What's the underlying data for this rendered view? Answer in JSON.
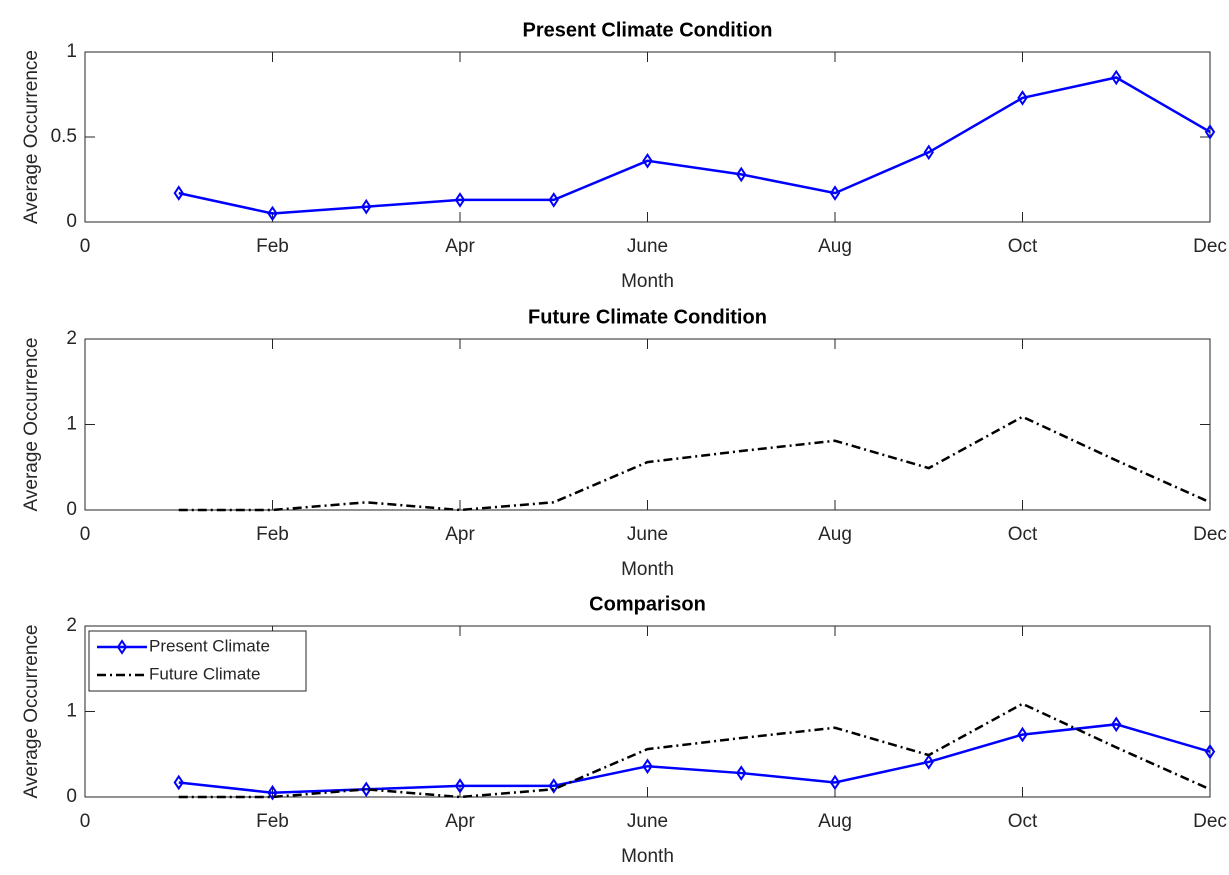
{
  "chart_data": [
    {
      "type": "line",
      "title": "Present Climate Condition",
      "xlabel": "Month",
      "ylabel": "Average Occurrence",
      "x": [
        1,
        2,
        3,
        4,
        5,
        6,
        7,
        8,
        9,
        10,
        11,
        12
      ],
      "series": [
        {
          "color": "#0000ff",
          "marker": "diamond",
          "linestyle": "solid",
          "values": [
            0.17,
            0.05,
            0.09,
            0.13,
            0.13,
            0.36,
            0.28,
            0.17,
            0.41,
            0.73,
            0.85,
            0.53
          ]
        }
      ],
      "xlim": [
        0,
        12
      ],
      "xticks": [
        0,
        {
          "value": 2,
          "label": "Feb"
        },
        {
          "value": 4,
          "label": "Apr"
        },
        {
          "value": 6,
          "label": "June"
        },
        {
          "value": 8,
          "label": "Aug"
        },
        {
          "value": 10,
          "label": "Oct"
        },
        {
          "value": 12,
          "label": "Dec"
        }
      ],
      "ylim": [
        0,
        1
      ],
      "yticks": [
        0,
        0.5,
        1
      ]
    },
    {
      "type": "line",
      "title": "Future Climate Condition",
      "xlabel": "Month",
      "ylabel": "Average Occurrence",
      "x": [
        1,
        2,
        3,
        4,
        5,
        6,
        7,
        8,
        9,
        10,
        11,
        12
      ],
      "series": [
        {
          "color": "#000000",
          "marker": "none",
          "linestyle": "dashdot",
          "values": [
            0,
            0,
            0.09,
            0,
            0.09,
            0.56,
            0.69,
            0.81,
            0.49,
            1.09,
            0.58,
            0.09
          ]
        }
      ],
      "xlim": [
        0,
        12
      ],
      "xticks": [
        0,
        {
          "value": 2,
          "label": "Feb"
        },
        {
          "value": 4,
          "label": "Apr"
        },
        {
          "value": 6,
          "label": "June"
        },
        {
          "value": 8,
          "label": "Aug"
        },
        {
          "value": 10,
          "label": "Oct"
        },
        {
          "value": 12,
          "label": "Dec"
        }
      ],
      "ylim": [
        0,
        2
      ],
      "yticks": [
        0,
        1,
        2
      ]
    },
    {
      "type": "line",
      "title": "Comparison",
      "xlabel": "Month",
      "ylabel": "Average Occurrence",
      "x": [
        1,
        2,
        3,
        4,
        5,
        6,
        7,
        8,
        9,
        10,
        11,
        12
      ],
      "series": [
        {
          "name": "Present Climate",
          "color": "#0000ff",
          "marker": "diamond",
          "linestyle": "solid",
          "values": [
            0.17,
            0.05,
            0.09,
            0.13,
            0.13,
            0.36,
            0.28,
            0.17,
            0.41,
            0.73,
            0.85,
            0.53
          ]
        },
        {
          "name": "Future Climate",
          "color": "#000000",
          "marker": "none",
          "linestyle": "dashdot",
          "values": [
            0,
            0,
            0.09,
            0,
            0.09,
            0.56,
            0.69,
            0.81,
            0.49,
            1.09,
            0.58,
            0.09
          ]
        }
      ],
      "xlim": [
        0,
        12
      ],
      "xticks": [
        0,
        {
          "value": 2,
          "label": "Feb"
        },
        {
          "value": 4,
          "label": "Apr"
        },
        {
          "value": 6,
          "label": "June"
        },
        {
          "value": 8,
          "label": "Aug"
        },
        {
          "value": 10,
          "label": "Oct"
        },
        {
          "value": 12,
          "label": "Dec"
        }
      ],
      "ylim": [
        0,
        2
      ],
      "yticks": [
        0,
        1,
        2
      ],
      "legend": "upper-left"
    }
  ]
}
